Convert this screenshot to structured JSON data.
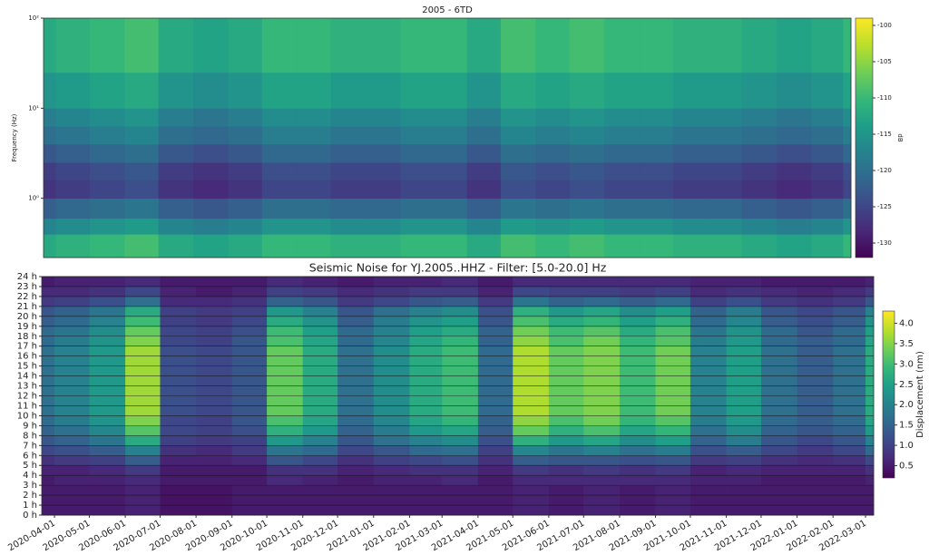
{
  "chart_data": [
    {
      "type": "heatmap",
      "title": "2005 - 6TD",
      "ylabel": "Frequency (Hz)",
      "yscale": "log",
      "colormap": "viridis",
      "colorbar_label": "dB",
      "clim": [
        -132,
        -99
      ],
      "cticks": [
        -100,
        -105,
        -110,
        -115,
        -120,
        -125,
        -130
      ],
      "xlim": [
        "2020-03-21",
        "2022-03-08"
      ],
      "x": [
        "2020-03-21",
        "2020-04-01",
        "2020-05-01",
        "2020-06-01",
        "2020-07-01",
        "2020-08-01",
        "2020-09-01",
        "2020-10-01",
        "2020-11-01",
        "2020-12-01",
        "2021-01-01",
        "2021-02-01",
        "2021-03-01",
        "2021-04-01",
        "2021-05-01",
        "2021-06-01",
        "2021-07-01",
        "2021-08-01",
        "2021-09-01",
        "2021-10-01",
        "2021-11-01",
        "2021-12-01",
        "2022-01-01",
        "2022-02-01",
        "2022-03-01"
      ],
      "ylim": [
        0.22,
        100
      ],
      "yticks": [
        {
          "value": 1,
          "label": "10⁰"
        },
        {
          "value": 10,
          "label": "10¹"
        },
        {
          "value": 100,
          "label": "10²"
        }
      ],
      "ybins": [
        0.22,
        0.4,
        0.6,
        1,
        1.6,
        2.5,
        4,
        6.3,
        10,
        25,
        100
      ],
      "values": [
        [
          -112,
          -111,
          -110,
          -109,
          -112,
          -113,
          -112,
          -110,
          -110,
          -111,
          -111,
          -110,
          -110,
          -112,
          -109,
          -110,
          -109,
          -110,
          -110,
          -111,
          -111,
          -112,
          -113,
          -112,
          -110
        ],
        [
          -117,
          -116,
          -115,
          -114,
          -117,
          -118,
          -117,
          -115,
          -115,
          -116,
          -116,
          -115,
          -115,
          -117,
          -114,
          -115,
          -114,
          -115,
          -115,
          -116,
          -116,
          -117,
          -118,
          -117,
          -115
        ],
        [
          -122,
          -121,
          -120,
          -119,
          -122,
          -123,
          -122,
          -120,
          -120,
          -121,
          -121,
          -120,
          -120,
          -122,
          -119,
          -120,
          -119,
          -120,
          -120,
          -121,
          -121,
          -122,
          -123,
          -122,
          -120
        ],
        [
          -127,
          -126,
          -125,
          -124,
          -127,
          -128,
          -127,
          -125,
          -125,
          -126,
          -126,
          -125,
          -125,
          -127,
          -124,
          -125,
          -124,
          -125,
          -125,
          -126,
          -126,
          -127,
          -128,
          -127,
          -125
        ],
        [
          -126,
          -125,
          -124,
          -123,
          -126,
          -127,
          -126,
          -124,
          -124,
          -125,
          -125,
          -124,
          -124,
          -126,
          -123,
          -124,
          -123,
          -124,
          -124,
          -125,
          -125,
          -126,
          -127,
          -126,
          -124
        ],
        [
          -123,
          -122,
          -121,
          -120,
          -123,
          -124,
          -123,
          -121,
          -121,
          -122,
          -122,
          -121,
          -121,
          -123,
          -120,
          -121,
          -120,
          -121,
          -121,
          -122,
          -122,
          -123,
          -124,
          -123,
          -121
        ],
        [
          -120,
          -119,
          -118,
          -117,
          -120,
          -121,
          -120,
          -118,
          -118,
          -119,
          -119,
          -118,
          -118,
          -120,
          -117,
          -118,
          -117,
          -118,
          -118,
          -119,
          -119,
          -120,
          -121,
          -120,
          -118
        ],
        [
          -118,
          -117,
          -116,
          -115,
          -118,
          -119,
          -118,
          -116,
          -116,
          -117,
          -117,
          -116,
          -116,
          -118,
          -115,
          -116,
          -115,
          -116,
          -116,
          -117,
          -117,
          -118,
          -119,
          -118,
          -116
        ],
        [
          -115,
          -114,
          -113,
          -112,
          -115,
          -116,
          -115,
          -113,
          -113,
          -114,
          -114,
          -113,
          -113,
          -115,
          -112,
          -113,
          -112,
          -113,
          -113,
          -114,
          -114,
          -115,
          -116,
          -115,
          -113
        ],
        [
          -112,
          -111,
          -110,
          -109,
          -112,
          -113,
          -112,
          -110,
          -110,
          -111,
          -111,
          -110,
          -110,
          -112,
          -109,
          -110,
          -109,
          -110,
          -110,
          -111,
          -111,
          -112,
          -113,
          -112,
          -110
        ]
      ]
    },
    {
      "type": "heatmap",
      "title": "Seismic Noise for YJ.2005..HHZ - Filter: [5.0-20.0] Hz",
      "colormap": "viridis",
      "grid": true,
      "colorbar_label": "Displacement (nm)",
      "clim": [
        0.2,
        4.3
      ],
      "cticks": [
        0.5,
        {
          "value": 1,
          "label": "1.0"
        },
        1.5,
        {
          "value": 2,
          "label": "2.0"
        },
        2.5,
        {
          "value": 3,
          "label": "3.0"
        },
        3.5,
        {
          "value": 4,
          "label": "4.0"
        }
      ],
      "xlim": [
        "2020-03-21",
        "2022-03-08"
      ],
      "xticks": [
        "2020-04-01",
        "2020-05-01",
        "2020-06-01",
        "2020-07-01",
        "2020-08-01",
        "2020-09-01",
        "2020-10-01",
        "2020-11-01",
        "2020-12-01",
        "2021-01-01",
        "2021-02-01",
        "2021-03-01",
        "2021-04-01",
        "2021-05-01",
        "2021-06-01",
        "2021-07-01",
        "2021-08-01",
        "2021-09-01",
        "2021-10-01",
        "2021-11-01",
        "2021-12-01",
        "2022-01-01",
        "2022-02-01",
        "2022-03-01"
      ],
      "x": [
        "2020-03-21",
        "2020-04-01",
        "2020-05-01",
        "2020-06-01",
        "2020-07-01",
        "2020-08-01",
        "2020-09-01",
        "2020-10-01",
        "2020-11-01",
        "2020-12-01",
        "2021-01-01",
        "2021-02-01",
        "2021-03-01",
        "2021-04-01",
        "2021-05-01",
        "2021-06-01",
        "2021-07-01",
        "2021-08-01",
        "2021-09-01",
        "2021-10-01",
        "2021-11-01",
        "2021-12-01",
        "2022-01-01",
        "2022-02-01",
        "2022-03-01"
      ],
      "ylim": [
        0,
        24
      ],
      "yticks": [
        {
          "value": 0,
          "label": "0 h"
        },
        {
          "value": 1,
          "label": "1 h"
        },
        {
          "value": 2,
          "label": "2 h"
        },
        {
          "value": 3,
          "label": "3 h"
        },
        {
          "value": 4,
          "label": "4 h"
        },
        {
          "value": 5,
          "label": "5 h"
        },
        {
          "value": 6,
          "label": "6 h"
        },
        {
          "value": 7,
          "label": "7 h"
        },
        {
          "value": 8,
          "label": "8 h"
        },
        {
          "value": 9,
          "label": "9 h"
        },
        {
          "value": 10,
          "label": "10 h"
        },
        {
          "value": 11,
          "label": "11 h"
        },
        {
          "value": 12,
          "label": "12 h"
        },
        {
          "value": 13,
          "label": "13 h"
        },
        {
          "value": 14,
          "label": "14 h"
        },
        {
          "value": 15,
          "label": "15 h"
        },
        {
          "value": 16,
          "label": "16 h"
        },
        {
          "value": 17,
          "label": "17 h"
        },
        {
          "value": 18,
          "label": "18 h"
        },
        {
          "value": 19,
          "label": "19 h"
        },
        {
          "value": 20,
          "label": "20 h"
        },
        {
          "value": 21,
          "label": "21 h"
        },
        {
          "value": 22,
          "label": "22 h"
        },
        {
          "value": 23,
          "label": "23 h"
        },
        {
          "value": 24,
          "label": "24 h"
        }
      ],
      "ybins": [
        0,
        1,
        2,
        3,
        4,
        5,
        6,
        7,
        8,
        9,
        10,
        11,
        12,
        13,
        14,
        15,
        16,
        17,
        18,
        19,
        20,
        21,
        22,
        23,
        24
      ],
      "values": [
        [
          0.5,
          0.5,
          0.5,
          0.6,
          0.4,
          0.4,
          0.5,
          0.5,
          0.5,
          0.5,
          0.5,
          0.5,
          0.5,
          0.5,
          0.6,
          0.5,
          0.6,
          0.5,
          0.6,
          0.5,
          0.5,
          0.5,
          0.5,
          0.5,
          0.5
        ],
        [
          0.5,
          0.5,
          0.5,
          0.6,
          0.4,
          0.4,
          0.5,
          0.5,
          0.5,
          0.5,
          0.5,
          0.5,
          0.5,
          0.5,
          0.6,
          0.5,
          0.6,
          0.5,
          0.6,
          0.5,
          0.5,
          0.5,
          0.5,
          0.5,
          0.5
        ],
        [
          0.5,
          0.5,
          0.5,
          0.6,
          0.4,
          0.4,
          0.5,
          0.5,
          0.5,
          0.5,
          0.5,
          0.5,
          0.5,
          0.5,
          0.6,
          0.5,
          0.6,
          0.5,
          0.6,
          0.5,
          0.5,
          0.5,
          0.5,
          0.5,
          0.5
        ],
        [
          0.5,
          0.6,
          0.6,
          0.7,
          0.5,
          0.5,
          0.5,
          0.7,
          0.6,
          0.5,
          0.6,
          0.6,
          0.7,
          0.5,
          0.7,
          0.7,
          0.7,
          0.7,
          0.7,
          0.6,
          0.6,
          0.5,
          0.5,
          0.5,
          0.6
        ],
        [
          0.6,
          0.6,
          0.7,
          0.9,
          0.5,
          0.5,
          0.5,
          0.8,
          0.8,
          0.6,
          0.7,
          0.8,
          0.8,
          0.6,
          0.9,
          0.8,
          0.9,
          0.8,
          0.9,
          0.6,
          0.7,
          0.6,
          0.6,
          0.6,
          0.8
        ],
        [
          0.8,
          0.9,
          1.0,
          1.4,
          0.6,
          0.6,
          0.7,
          1.3,
          1.1,
          0.8,
          1.0,
          1.1,
          1.2,
          0.8,
          1.4,
          1.3,
          1.3,
          1.2,
          1.3,
          0.9,
          1.0,
          0.8,
          0.7,
          0.8,
          1.1
        ],
        [
          1.1,
          1.2,
          1.4,
          2.0,
          0.8,
          0.7,
          0.9,
          1.8,
          1.6,
          1.1,
          1.3,
          1.6,
          1.7,
          1.0,
          2.1,
          1.8,
          2.0,
          1.7,
          1.9,
          1.2,
          1.4,
          1.1,
          0.9,
          1.1,
          1.6
        ],
        [
          1.3,
          1.5,
          1.8,
          2.7,
          1.0,
          0.9,
          1.0,
          2.4,
          2.0,
          1.3,
          1.7,
          2.0,
          2.2,
          1.2,
          2.8,
          2.4,
          2.6,
          2.2,
          2.5,
          1.5,
          1.9,
          1.3,
          1.1,
          1.3,
          2.0
        ],
        [
          1.5,
          1.7,
          2.1,
          3.2,
          1.1,
          1.0,
          1.2,
          2.8,
          2.4,
          1.5,
          1.9,
          2.4,
          2.6,
          1.4,
          3.3,
          2.8,
          3.1,
          2.6,
          2.9,
          1.7,
          2.2,
          1.5,
          1.3,
          1.5,
          2.4
        ],
        [
          1.6,
          1.9,
          2.3,
          3.5,
          1.1,
          1.0,
          1.3,
          3.1,
          2.6,
          1.6,
          2.1,
          2.6,
          2.9,
          1.5,
          3.6,
          3.1,
          3.4,
          2.9,
          3.2,
          1.9,
          2.4,
          1.6,
          1.4,
          1.6,
          2.6
        ],
        [
          1.7,
          2.0,
          2.4,
          3.7,
          1.2,
          1.1,
          1.3,
          3.3,
          2.7,
          1.7,
          2.2,
          2.7,
          3.0,
          1.6,
          3.8,
          3.3,
          3.5,
          3.0,
          3.4,
          2.0,
          2.5,
          1.7,
          1.4,
          1.7,
          2.7
        ],
        [
          1.7,
          2.0,
          2.4,
          3.7,
          1.2,
          1.1,
          1.3,
          3.3,
          2.7,
          1.7,
          2.2,
          2.7,
          3.0,
          1.6,
          3.8,
          3.3,
          3.5,
          3.0,
          3.4,
          2.0,
          2.5,
          1.7,
          1.4,
          1.7,
          2.7
        ],
        [
          1.7,
          2.0,
          2.4,
          3.7,
          1.2,
          1.1,
          1.3,
          3.3,
          2.7,
          1.7,
          2.2,
          2.7,
          3.0,
          1.6,
          3.8,
          3.3,
          3.5,
          3.0,
          3.4,
          2.0,
          2.5,
          1.7,
          1.4,
          1.7,
          2.7
        ],
        [
          1.7,
          2.0,
          2.4,
          3.7,
          1.2,
          1.1,
          1.3,
          3.3,
          2.7,
          1.7,
          2.2,
          2.7,
          3.0,
          1.6,
          3.8,
          3.3,
          3.5,
          3.0,
          3.4,
          2.0,
          2.5,
          1.7,
          1.4,
          1.7,
          2.7
        ],
        [
          1.7,
          2.0,
          2.4,
          3.7,
          1.2,
          1.1,
          1.3,
          3.3,
          2.7,
          1.7,
          2.2,
          2.7,
          3.0,
          1.6,
          3.8,
          3.3,
          3.5,
          3.0,
          3.4,
          2.0,
          2.5,
          1.7,
          1.4,
          1.7,
          2.7
        ],
        [
          1.7,
          2.0,
          2.4,
          3.7,
          1.2,
          1.1,
          1.3,
          3.3,
          2.7,
          1.7,
          2.2,
          2.7,
          3.0,
          1.6,
          3.8,
          3.3,
          3.5,
          3.0,
          3.4,
          2.0,
          2.5,
          1.7,
          1.4,
          1.7,
          2.7
        ],
        [
          1.7,
          2.0,
          2.4,
          3.7,
          1.2,
          1.1,
          1.3,
          3.3,
          2.7,
          1.7,
          2.2,
          2.7,
          3.0,
          1.6,
          3.8,
          3.3,
          3.5,
          3.0,
          3.4,
          2.0,
          2.5,
          1.7,
          1.4,
          1.7,
          2.7
        ],
        [
          1.6,
          1.9,
          2.3,
          3.5,
          1.1,
          1.0,
          1.3,
          3.1,
          2.6,
          1.6,
          2.1,
          2.6,
          2.9,
          1.5,
          3.6,
          3.1,
          3.4,
          2.9,
          3.2,
          1.9,
          2.4,
          1.6,
          1.4,
          1.6,
          2.6
        ],
        [
          1.6,
          1.8,
          2.2,
          3.3,
          1.1,
          1.0,
          1.2,
          3.0,
          2.5,
          1.6,
          2.0,
          2.5,
          2.7,
          1.5,
          3.4,
          3.0,
          3.2,
          2.7,
          3.1,
          1.8,
          2.3,
          1.6,
          1.3,
          1.6,
          2.5
        ],
        [
          1.4,
          1.6,
          2.0,
          3.0,
          1.0,
          0.9,
          1.1,
          2.7,
          2.3,
          1.4,
          1.9,
          2.3,
          2.5,
          1.3,
          3.1,
          2.7,
          2.9,
          2.5,
          2.8,
          1.6,
          2.1,
          1.4,
          1.2,
          1.4,
          2.3
        ],
        [
          1.3,
          1.5,
          1.8,
          2.7,
          1.0,
          0.9,
          1.0,
          2.4,
          2.0,
          1.3,
          1.7,
          2.0,
          2.2,
          1.2,
          2.8,
          2.4,
          2.6,
          2.2,
          2.5,
          1.5,
          1.9,
          1.3,
          1.1,
          1.3,
          2.0
        ],
        [
          0.9,
          1.0,
          1.2,
          1.7,
          0.7,
          0.7,
          0.8,
          1.5,
          1.3,
          0.9,
          1.1,
          1.3,
          1.4,
          0.9,
          1.8,
          1.5,
          1.6,
          1.4,
          1.6,
          1.0,
          1.2,
          0.9,
          0.8,
          0.9,
          1.3
        ],
        [
          0.7,
          0.7,
          0.8,
          1.1,
          0.6,
          0.5,
          0.6,
          1.0,
          0.9,
          0.7,
          0.8,
          0.9,
          0.9,
          0.6,
          1.1,
          1.0,
          1.0,
          0.9,
          1.0,
          0.7,
          0.8,
          0.7,
          0.6,
          0.7,
          0.9
        ],
        [
          0.5,
          0.6,
          0.6,
          0.7,
          0.5,
          0.5,
          0.5,
          0.7,
          0.6,
          0.5,
          0.6,
          0.6,
          0.7,
          0.5,
          0.7,
          0.7,
          0.7,
          0.7,
          0.7,
          0.6,
          0.6,
          0.5,
          0.5,
          0.5,
          0.6
        ]
      ]
    }
  ]
}
